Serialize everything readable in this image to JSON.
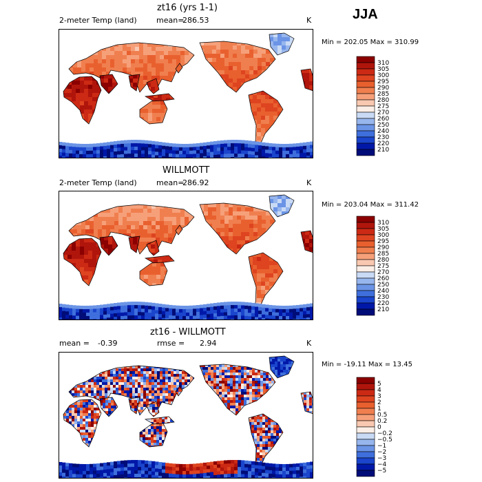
{
  "season": "JJA",
  "unit_abs": "K",
  "chart_data": [
    {
      "type": "heatmap",
      "title": "zt16 (yrs 1-1)",
      "variable": "2-meter Temp (land)",
      "mean_label": "mean=",
      "mean": "286.53",
      "unit": "K",
      "min": "202.05",
      "max": "310.99",
      "minmax_text": "Min = 202.05 Max = 310.99",
      "colorbar": [
        310,
        305,
        300,
        295,
        290,
        285,
        280,
        275,
        270,
        260,
        250,
        240,
        230,
        220,
        210
      ],
      "colors": [
        "#8b0000",
        "#b0150c",
        "#cc2a14",
        "#de4420",
        "#e9602f",
        "#f07f4f",
        "#f6a07a",
        "#f9c8b0",
        "#fbeee6",
        "#c9daf5",
        "#97b6ee",
        "#6b94e6",
        "#3f6fdc",
        "#1a45cc",
        "#0018a8",
        "#000c78"
      ]
    },
    {
      "type": "heatmap",
      "title": "WILLMOTT",
      "variable": "2-meter Temp (land)",
      "mean_label": "mean=",
      "mean": "286.92",
      "unit": "K",
      "min": "203.04",
      "max": "311.42",
      "minmax_text": "Min = 203.04 Max = 311.42",
      "colorbar": [
        310,
        305,
        300,
        295,
        290,
        285,
        280,
        275,
        270,
        260,
        250,
        240,
        230,
        220,
        210
      ],
      "colors": [
        "#8b0000",
        "#b0150c",
        "#cc2a14",
        "#de4420",
        "#e9602f",
        "#f07f4f",
        "#f6a07a",
        "#f9c8b0",
        "#fbeee6",
        "#c9daf5",
        "#97b6ee",
        "#6b94e6",
        "#3f6fdc",
        "#1a45cc",
        "#0018a8",
        "#000c78"
      ]
    },
    {
      "type": "heatmap",
      "title": "zt16 - WILLMOTT",
      "mean_label": "mean =",
      "mean": "-0.39",
      "rmse_label": "rmse =",
      "rmse": "2.94",
      "unit": "K",
      "min": "-19.11",
      "max": "13.45",
      "minmax_text": "Min = -19.11 Max =  13.45",
      "colorbar": [
        "5",
        "4",
        "3",
        "2",
        "1",
        "0.5",
        "0.2",
        "0",
        "−0.2",
        "−0.5",
        "−1",
        "−2",
        "−3",
        "−4",
        "−5"
      ],
      "colors": [
        "#8b0000",
        "#b0150c",
        "#cc2a14",
        "#de4420",
        "#e9602f",
        "#f07f4f",
        "#f6a07a",
        "#f9c8b0",
        "#fbeee6",
        "#c9daf5",
        "#97b6ee",
        "#6b94e6",
        "#3f6fdc",
        "#1a45cc",
        "#0018a8",
        "#000c78"
      ]
    }
  ]
}
